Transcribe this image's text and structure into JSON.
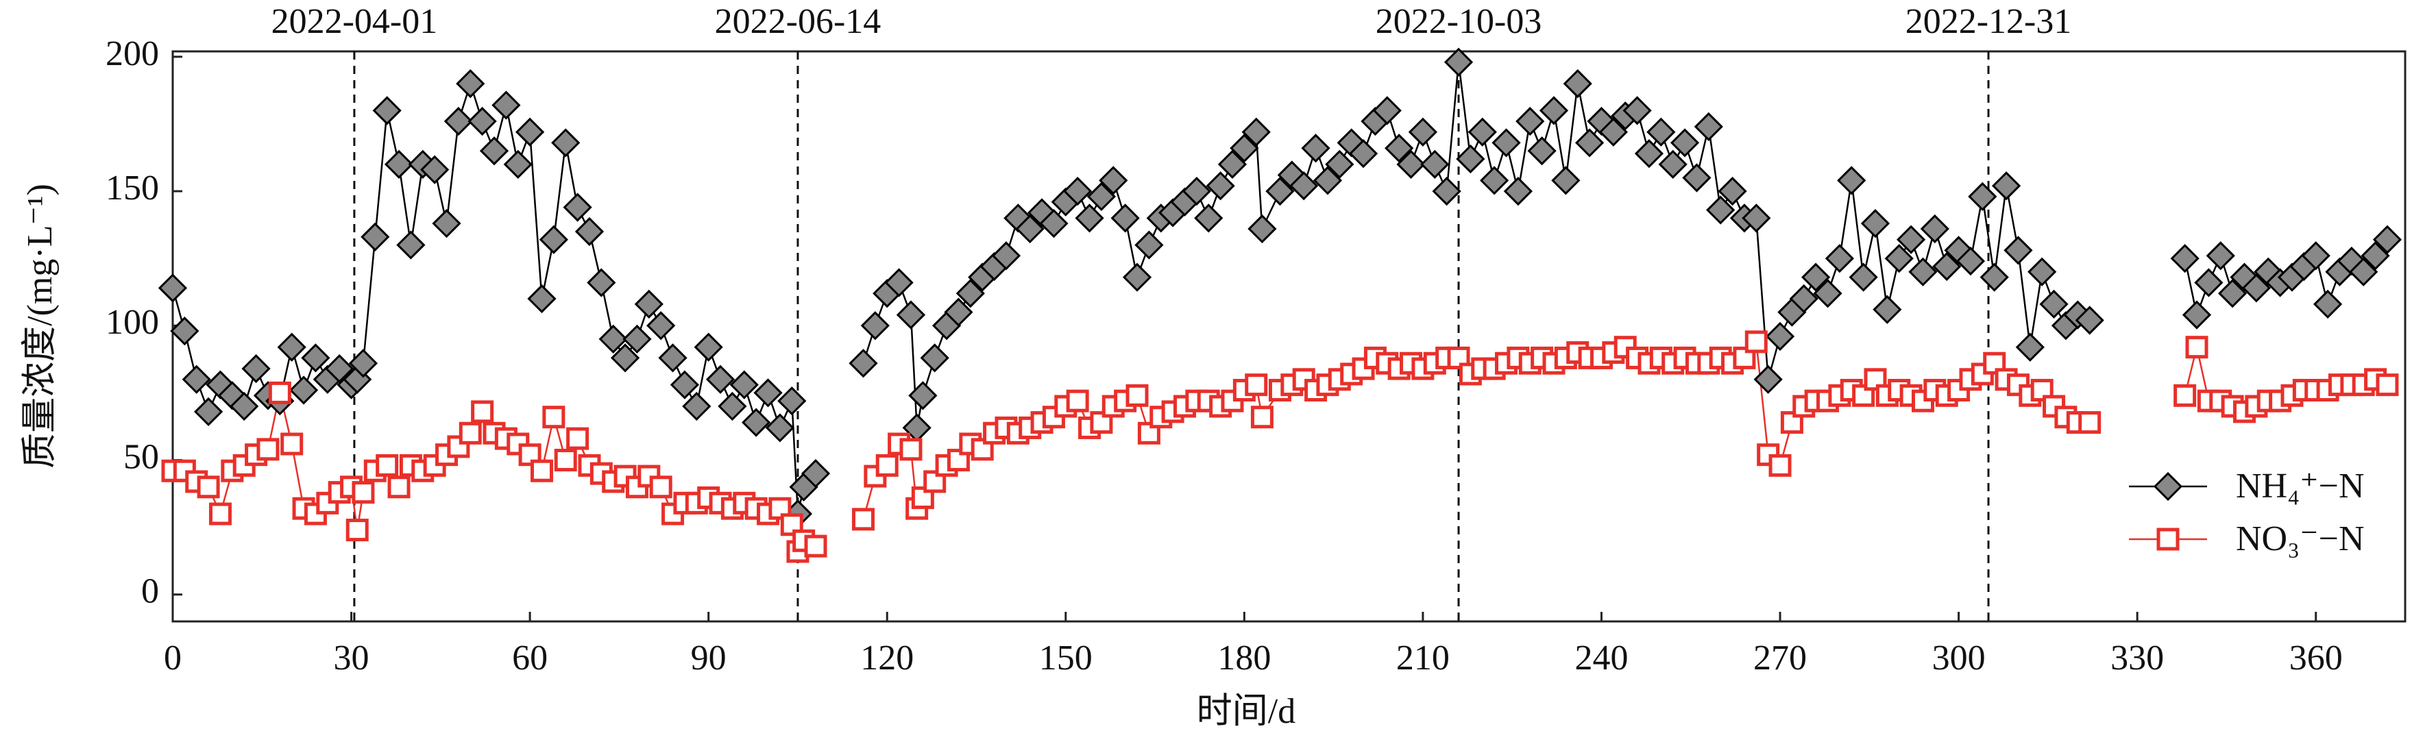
{
  "chart_data": {
    "type": "line",
    "xlabel": "时间/d",
    "ylabel": "质量浓度/(mg·L⁻¹)",
    "x": [
      0,
      2,
      4,
      6,
      8,
      10,
      12,
      14,
      16,
      18,
      20,
      22,
      24,
      26,
      28,
      30,
      31,
      32,
      34,
      36,
      38,
      40,
      42,
      44,
      46,
      48,
      50,
      52,
      54,
      56,
      58,
      60,
      62,
      64,
      66,
      68,
      70,
      72,
      74,
      76,
      78,
      80,
      82,
      84,
      86,
      88,
      90,
      92,
      94,
      96,
      98,
      100,
      102,
      104,
      105,
      106,
      108,
      112,
      116,
      118,
      120,
      122,
      124,
      125,
      126,
      128,
      130,
      132,
      134,
      136,
      138,
      140,
      142,
      144,
      146,
      148,
      150,
      152,
      154,
      156,
      158,
      160,
      162,
      164,
      166,
      168,
      170,
      172,
      174,
      176,
      178,
      180,
      182,
      183,
      186,
      188,
      190,
      192,
      194,
      196,
      198,
      200,
      202,
      204,
      206,
      208,
      210,
      212,
      214,
      216,
      218,
      220,
      222,
      224,
      226,
      228,
      230,
      232,
      234,
      236,
      238,
      240,
      242,
      244,
      246,
      248,
      250,
      252,
      254,
      256,
      258,
      260,
      262,
      264,
      266,
      268,
      270,
      272,
      274,
      276,
      278,
      280,
      282,
      284,
      286,
      288,
      290,
      292,
      294,
      296,
      298,
      300,
      302,
      304,
      306,
      308,
      310,
      312,
      314,
      316,
      318,
      320,
      322,
      330,
      338,
      340,
      342,
      344,
      346,
      348,
      350,
      352,
      354,
      356,
      358,
      360,
      362,
      364,
      366,
      368,
      370,
      372
    ],
    "series": [
      {
        "name": "NH₄⁺−N",
        "color": "#000000",
        "marker": "diamond",
        "values": [
          114,
          98,
          80,
          68,
          78,
          74,
          70,
          84,
          74,
          72,
          92,
          76,
          88,
          80,
          84,
          78,
          80,
          86,
          133,
          180,
          160,
          130,
          160,
          158,
          138,
          176,
          190,
          176,
          165,
          182,
          160,
          172,
          110,
          132,
          168,
          144,
          135,
          116,
          95,
          88,
          95,
          108,
          100,
          88,
          78,
          70,
          92,
          80,
          70,
          78,
          64,
          75,
          62,
          72,
          30,
          40,
          45,
          null,
          86,
          100,
          112,
          116,
          104,
          62,
          74,
          88,
          100,
          105,
          112,
          118,
          122,
          126,
          140,
          136,
          142,
          138,
          146,
          150,
          140,
          148,
          154,
          140,
          118,
          130,
          140,
          142,
          146,
          150,
          140,
          152,
          160,
          166,
          172,
          136,
          150,
          156,
          152,
          166,
          154,
          160,
          168,
          164,
          176,
          180,
          166,
          160,
          172,
          160,
          150,
          198,
          162,
          172,
          154,
          168,
          150,
          176,
          165,
          180,
          154,
          190,
          168,
          176,
          172,
          178,
          180,
          164,
          172,
          160,
          168,
          155,
          174,
          143,
          150,
          140,
          140,
          80,
          96,
          105,
          110,
          118,
          112,
          125,
          154,
          118,
          138,
          106,
          125,
          132,
          120,
          136,
          122,
          128,
          124,
          148,
          118,
          152,
          128,
          92,
          120,
          108,
          100,
          104,
          102,
          null,
          125,
          104,
          116,
          126,
          112,
          118,
          114,
          120,
          116,
          118,
          122,
          126,
          108,
          120,
          124,
          120,
          126,
          132
        ]
      },
      {
        "name": "NO₃⁻−N",
        "color": "#e8302a",
        "marker": "square",
        "values": [
          46,
          46,
          42,
          40,
          30,
          46,
          48,
          52,
          54,
          75,
          56,
          32,
          30,
          34,
          38,
          40,
          24,
          38,
          46,
          48,
          40,
          48,
          46,
          48,
          52,
          55,
          60,
          68,
          60,
          58,
          56,
          52,
          46,
          66,
          50,
          58,
          48,
          45,
          42,
          44,
          40,
          44,
          40,
          30,
          34,
          34,
          36,
          34,
          32,
          34,
          32,
          30,
          32,
          26,
          16,
          20,
          18,
          null,
          28,
          44,
          48,
          56,
          54,
          32,
          36,
          42,
          48,
          50,
          56,
          54,
          60,
          62,
          60,
          62,
          64,
          66,
          70,
          72,
          62,
          64,
          70,
          72,
          74,
          60,
          66,
          68,
          70,
          72,
          72,
          70,
          72,
          76,
          78,
          66,
          76,
          78,
          80,
          76,
          78,
          80,
          82,
          84,
          88,
          86,
          84,
          86,
          84,
          86,
          88,
          88,
          82,
          84,
          84,
          86,
          88,
          86,
          88,
          86,
          88,
          90,
          88,
          88,
          90,
          92,
          88,
          86,
          88,
          86,
          88,
          86,
          86,
          88,
          86,
          88,
          94,
          52,
          48,
          64,
          70,
          72,
          72,
          74,
          76,
          74,
          80,
          74,
          76,
          74,
          72,
          76,
          74,
          76,
          80,
          82,
          86,
          80,
          78,
          74,
          76,
          70,
          66,
          64,
          64,
          null,
          74,
          92,
          72,
          72,
          70,
          68,
          70,
          72,
          72,
          74,
          76,
          76,
          76,
          78,
          78,
          78,
          80,
          78
        ]
      }
    ],
    "xlim": [
      0,
      375
    ],
    "ylim": [
      -10,
      202
    ],
    "xticks": [
      0,
      30,
      60,
      90,
      120,
      150,
      180,
      210,
      240,
      270,
      300,
      330,
      360
    ],
    "yticks": [
      0,
      50,
      100,
      150,
      200
    ],
    "vlines": [
      {
        "x": 30.5,
        "label": "2022-04-01"
      },
      {
        "x": 105,
        "label": "2022-06-14"
      },
      {
        "x": 216,
        "label": "2022-10-03"
      },
      {
        "x": 305,
        "label": "2022-12-31"
      }
    ],
    "legend": "right"
  }
}
